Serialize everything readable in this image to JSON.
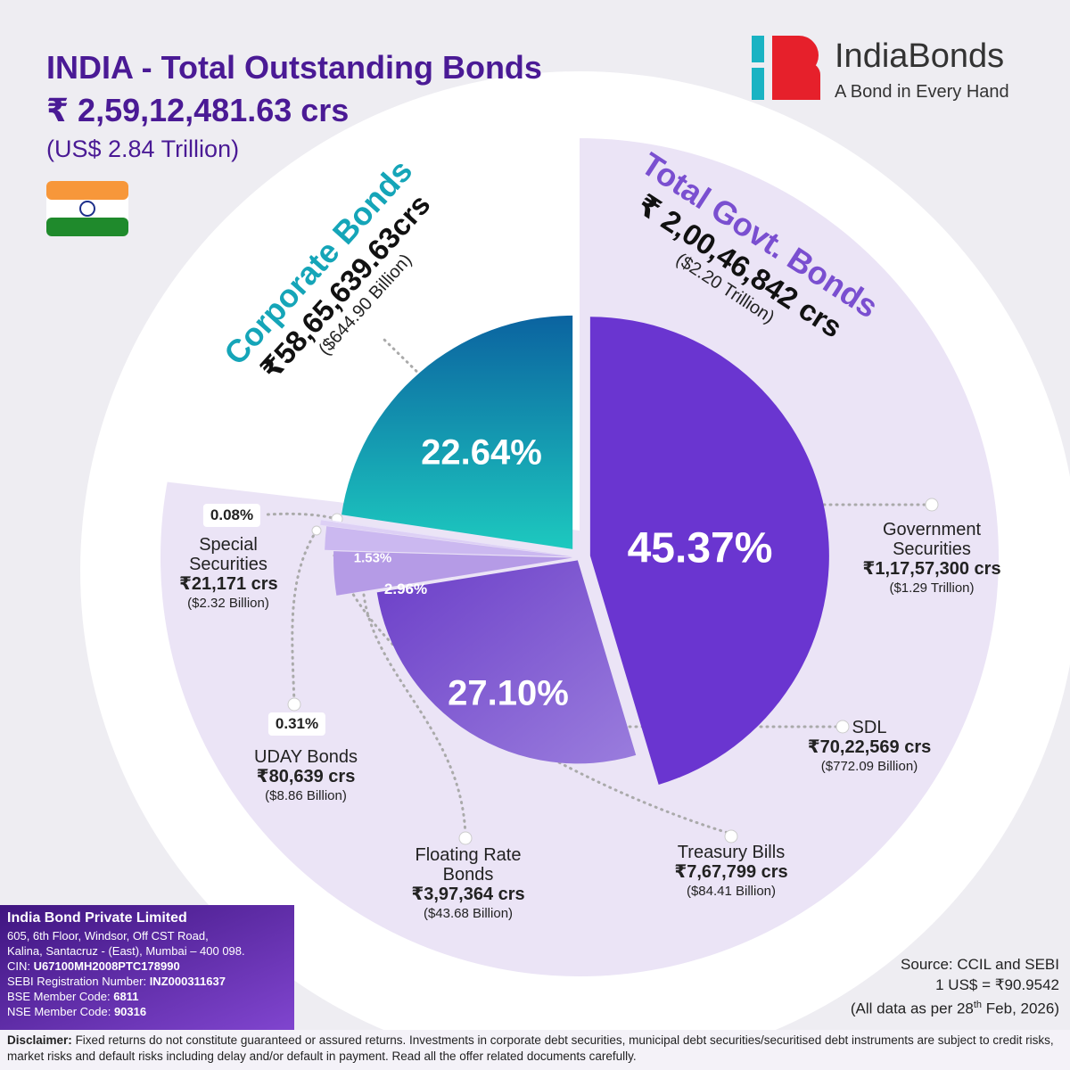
{
  "header": {
    "title": "INDIA - Total Outstanding Bonds",
    "total": "₹ 2,59,12,481.63 crs",
    "total_usd": "(US$ 2.84 Trillion)"
  },
  "logo": {
    "name": "IndiaBonds",
    "tagline": "A Bond in Every Hand"
  },
  "chart_data": {
    "type": "pie",
    "categories": [
      "Government Securities",
      "SDL",
      "Treasury Bills",
      "Floating Rate Bonds",
      "UDAY Bonds",
      "Special Securities",
      "Corporate Bonds"
    ],
    "values": [
      45.37,
      27.1,
      2.96,
      1.53,
      0.31,
      0.08,
      22.64
    ],
    "value_labels": [
      "45.37%",
      "27.10%",
      "2.96%",
      "1.53%",
      "0.31%",
      "0.08%",
      "22.64%"
    ],
    "amounts": [
      "₹1,17,57,300 crs",
      "₹70,22,569 crs",
      "₹7,67,799 crs",
      "₹3,97,364 crs",
      "₹80,639 crs",
      "₹21,171 crs",
      null
    ],
    "amounts_usd": [
      "($1.29 Trillion)",
      "($772.09 Billion)",
      "($84.41 Billion)",
      "($43.68 Billion)",
      "($8.86 Billion)",
      "($2.32 Billion)",
      null
    ],
    "colors": [
      "#6a35d0",
      "url(#sdl)",
      "#b59be6",
      "#cbb8f0",
      "#ddd0f5",
      "#e9e2f9",
      "url(#corp)"
    ],
    "groups": [
      {
        "name": "Corporate Bonds",
        "amount": "₹58,65,639.63crs",
        "amount_usd": "($644.90 Billion)"
      },
      {
        "name": "Total Govt. Bonds",
        "amount": "₹ 2,00,46,842 crs",
        "amount_usd": "($2.20 Trillion)"
      }
    ]
  },
  "source": {
    "lines": [
      "Source: CCIL and SEBI",
      "1 US$ = ₹90.9542"
    ],
    "as_of": [
      "(All data as per 28",
      "th",
      " Feb, 2026)"
    ]
  },
  "company": {
    "name": "India Bond Private Limited",
    "address": [
      "605, 6th Floor, Windsor, Off CST Road,",
      "Kalina, Santacruz - (East), Mumbai – 400 098."
    ],
    "ids": [
      {
        "label": "CIN: ",
        "value": "U67100MH2008PTC178990"
      },
      {
        "label": "SEBI Registration Number: ",
        "value": "INZ000311637"
      },
      {
        "label": "BSE Member Code: ",
        "value": "6811"
      },
      {
        "label": "NSE Member Code: ",
        "value": "90316"
      }
    ]
  },
  "disclaimer": {
    "label": "Disclaimer:",
    "text": "Fixed returns do not constitute guaranteed or assured returns. Investments in corporate debt securities, municipal debt securities/securitised debt instruments are subject to credit risks, market risks and default risks including delay and/or default in payment. Read all the offer related documents carefully."
  }
}
